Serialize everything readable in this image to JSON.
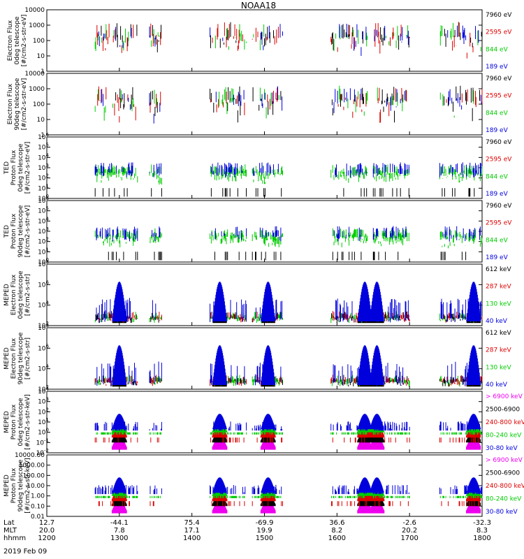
{
  "chart_data": {
    "type": "line",
    "title": "NOAA18",
    "date_label": "2019 Feb 09",
    "panels": [
      {
        "ylabel": [
          "Electron Flux",
          "0deg telescope",
          "[#/cm2-s-str-eV]"
        ],
        "yscale": "log",
        "ylim": [
          1,
          10000
        ],
        "yticks": [
          "1",
          "10",
          "100",
          "1000",
          "10000"
        ],
        "legend": [
          {
            "label": "7960 eV",
            "color": "#000000"
          },
          {
            "label": "2595 eV",
            "color": "#dd0000"
          },
          {
            "label": "844 eV",
            "color": "#00cc00"
          },
          {
            "label": "189 eV",
            "color": "#0000dd"
          }
        ]
      },
      {
        "ylabel": [
          "Electron Flux",
          "90deg telescope",
          "[#/cm2-s-str-eV]"
        ],
        "yscale": "log",
        "ylim": [
          1,
          10000
        ],
        "yticks": [
          "1",
          "10",
          "100",
          "1000",
          "10000"
        ],
        "legend": [
          {
            "label": "7960 eV",
            "color": "#000000"
          },
          {
            "label": "2595 eV",
            "color": "#dd0000"
          },
          {
            "label": "844 eV",
            "color": "#00cc00"
          },
          {
            "label": "189 eV",
            "color": "#0000dd"
          }
        ]
      },
      {
        "ylabel": [
          "TED",
          "Proton Flux",
          "0deg telescope",
          "[#/cm2-s-str-eV]"
        ],
        "yscale": "log",
        "ylim": [
          1,
          1000000
        ],
        "yticks": [
          "10^0",
          "10^1",
          "10^2",
          "10^3",
          "10^4",
          "10^5",
          "10^6"
        ],
        "legend": [
          {
            "label": "7960 eV",
            "color": "#000000"
          },
          {
            "label": "2595 eV",
            "color": "#dd0000"
          },
          {
            "label": "844 eV",
            "color": "#00cc00"
          },
          {
            "label": "189 eV",
            "color": "#0000dd"
          }
        ]
      },
      {
        "ylabel": [
          "TED",
          "Proton Flux",
          "90deg telescope",
          "[#/cm2-s-str-eV]"
        ],
        "yscale": "log",
        "ylim": [
          1,
          1000000
        ],
        "yticks": [
          "10^0",
          "10^1",
          "10^2",
          "10^3",
          "10^4",
          "10^5",
          "10^6"
        ],
        "legend": [
          {
            "label": "7960 eV",
            "color": "#000000"
          },
          {
            "label": "2595 eV",
            "color": "#dd0000"
          },
          {
            "label": "844 eV",
            "color": "#00cc00"
          },
          {
            "label": "189 eV",
            "color": "#0000dd"
          }
        ]
      },
      {
        "ylabel": [
          "MEPED",
          "Electron Flux",
          "0deg telescope",
          "[#/cm2-s-str]"
        ],
        "yscale": "log",
        "ylim": [
          100,
          1000000000
        ],
        "yticks": [
          "10^2",
          "10^4",
          "10^6",
          "10^8"
        ],
        "legend": [
          {
            "label": "612 keV",
            "color": "#000000"
          },
          {
            "label": "287 keV",
            "color": "#dd0000"
          },
          {
            "label": "130 keV",
            "color": "#00cc00"
          },
          {
            "label": "40 keV",
            "color": "#0000dd"
          }
        ]
      },
      {
        "ylabel": [
          "MEPED",
          "Electron Flux",
          "90deg telescope",
          "[#/cm2-s-str]"
        ],
        "yscale": "log",
        "ylim": [
          100,
          1000000000
        ],
        "yticks": [
          "10^2",
          "10^4",
          "10^6",
          "10^8"
        ],
        "legend": [
          {
            "label": "612 keV",
            "color": "#000000"
          },
          {
            "label": "287 keV",
            "color": "#dd0000"
          },
          {
            "label": "130 keV",
            "color": "#00cc00"
          },
          {
            "label": "40 keV",
            "color": "#0000dd"
          }
        ]
      },
      {
        "ylabel": [
          "MEPED",
          "Proton Flux",
          "0deg telescope",
          "[#/cm2-s-str-keV]"
        ],
        "yscale": "log",
        "ylim": [
          0.01,
          10000
        ],
        "yticks": [
          "10^-2",
          "10^-1",
          "10^0",
          "10^1",
          "10^2",
          "10^3",
          "10^4"
        ],
        "legend": [
          {
            "label": "> 6900 keV",
            "color": "#ee00ee"
          },
          {
            "label": "2500-6900",
            "color": "#000000"
          },
          {
            "label": "240-800 keV",
            "color": "#dd0000"
          },
          {
            "label": "80-240 keV",
            "color": "#00cc00"
          },
          {
            "label": "30-80 keV",
            "color": "#0000dd"
          }
        ]
      },
      {
        "ylabel": [
          "MEPED",
          "Proton Flux",
          "90deg telescope",
          "[#/cm2-s-str-keV]"
        ],
        "yscale": "log",
        "ylim": [
          0.01,
          10000
        ],
        "yticks": [
          "0.01",
          "0.10",
          "1.00",
          "10.00",
          "100.00",
          "1000.00",
          "10000.00"
        ],
        "legend": [
          {
            "label": "> 6900 keV",
            "color": "#ee00ee"
          },
          {
            "label": "2500-6900",
            "color": "#000000"
          },
          {
            "label": "240-800 keV",
            "color": "#dd0000"
          },
          {
            "label": "80-240 keV",
            "color": "#00cc00"
          },
          {
            "label": "30-80 keV",
            "color": "#0000dd"
          }
        ]
      }
    ],
    "x_axis": {
      "row_labels": [
        "Lat",
        "MLT",
        "hhmm"
      ],
      "ticks": [
        {
          "lat": "12.7",
          "mlt": "20.0",
          "hhmm": "1200"
        },
        {
          "lat": "-44.1",
          "mlt": "7.8",
          "hhmm": "1300"
        },
        {
          "lat": "75.4",
          "mlt": "17.1",
          "hhmm": "1400"
        },
        {
          "lat": "-69.9",
          "mlt": "19.9",
          "hhmm": "1500"
        },
        {
          "lat": "36.6",
          "mlt": "8.2",
          "hhmm": "1600"
        },
        {
          "lat": "-2.6",
          "mlt": "20.2",
          "hhmm": "1700"
        },
        {
          "lat": "-32.3",
          "mlt": "8.3",
          "hhmm": "1800"
        }
      ]
    },
    "passes": [
      {
        "start": 1240,
        "end": 1315,
        "burst": 1300
      },
      {
        "start": 1325,
        "end": 1335,
        "burst": 0
      },
      {
        "start": 1415,
        "end": 1445,
        "burst": 1423
      },
      {
        "start": 1450,
        "end": 1515,
        "burst": 1503
      },
      {
        "start": 1555,
        "end": 1625,
        "burst": 1623
      },
      {
        "start": 1630,
        "end": 1700,
        "burst": 1633
      },
      {
        "start": 1725,
        "end": 1800,
        "burst": 1753
      }
    ]
  }
}
